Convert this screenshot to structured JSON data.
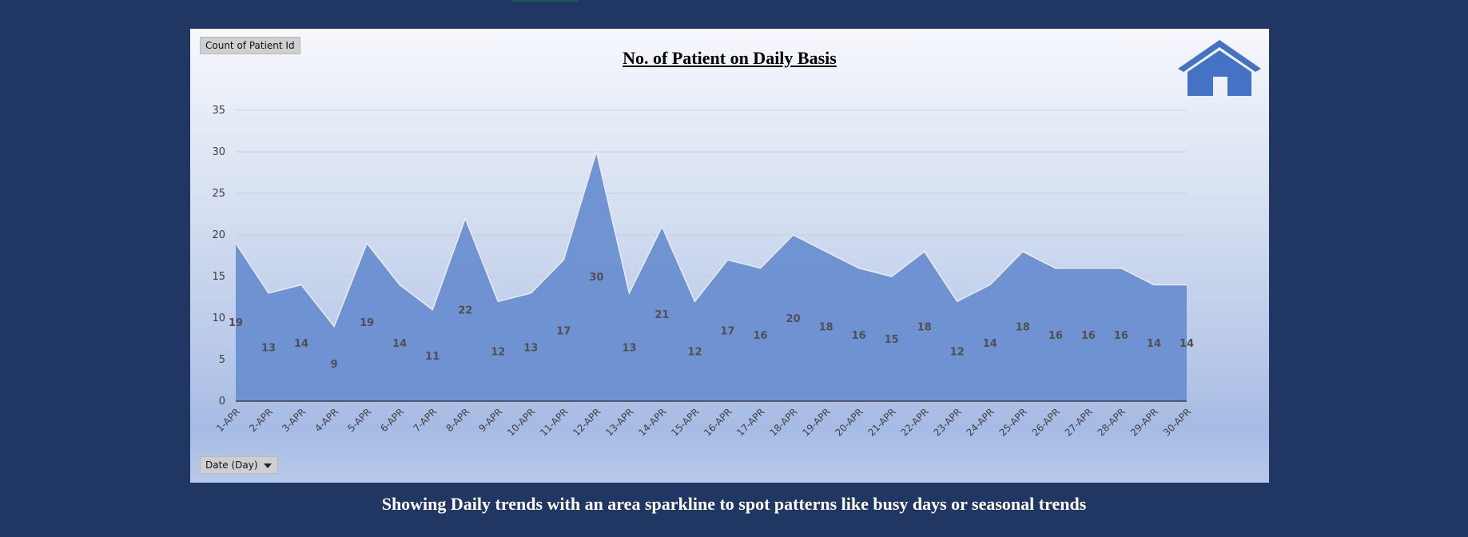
{
  "panel": {
    "value_field": "Count of Patient Id",
    "axis_field": "Date (Day)",
    "caption": "Showing Daily trends with an area sparkline to spot patterns like busy days or seasonal trends"
  },
  "icons": {
    "home": "home-icon",
    "dropdown": "chevron-down-icon"
  },
  "colors": {
    "background": "#203764",
    "area_fill": "#6a8fd1",
    "area_stroke": "#e8eef8",
    "icon": "#4472c4"
  },
  "chart_data": {
    "type": "area",
    "title": "No. of Patient on Daily Basis",
    "xlabel": "",
    "ylabel": "",
    "categories": [
      "1-APR",
      "2-APR",
      "3-APR",
      "4-APR",
      "5-APR",
      "6-APR",
      "7-APR",
      "8-APR",
      "9-APR",
      "10-APR",
      "11-APR",
      "12-APR",
      "13-APR",
      "14-APR",
      "15-APR",
      "16-APR",
      "17-APR",
      "18-APR",
      "19-APR",
      "20-APR",
      "21-APR",
      "22-APR",
      "23-APR",
      "24-APR",
      "25-APR",
      "26-APR",
      "27-APR",
      "28-APR",
      "29-APR",
      "30-APR"
    ],
    "values": [
      19,
      13,
      14,
      9,
      19,
      14,
      11,
      22,
      12,
      13,
      17,
      30,
      13,
      21,
      12,
      17,
      16,
      20,
      18,
      16,
      15,
      18,
      12,
      14,
      18,
      16,
      16,
      16,
      14,
      14
    ],
    "ylim": [
      0,
      35
    ],
    "yticks": [
      0,
      5,
      10,
      15,
      20,
      25,
      30,
      35
    ],
    "grid": true,
    "legend": "none",
    "data_labels": true
  }
}
